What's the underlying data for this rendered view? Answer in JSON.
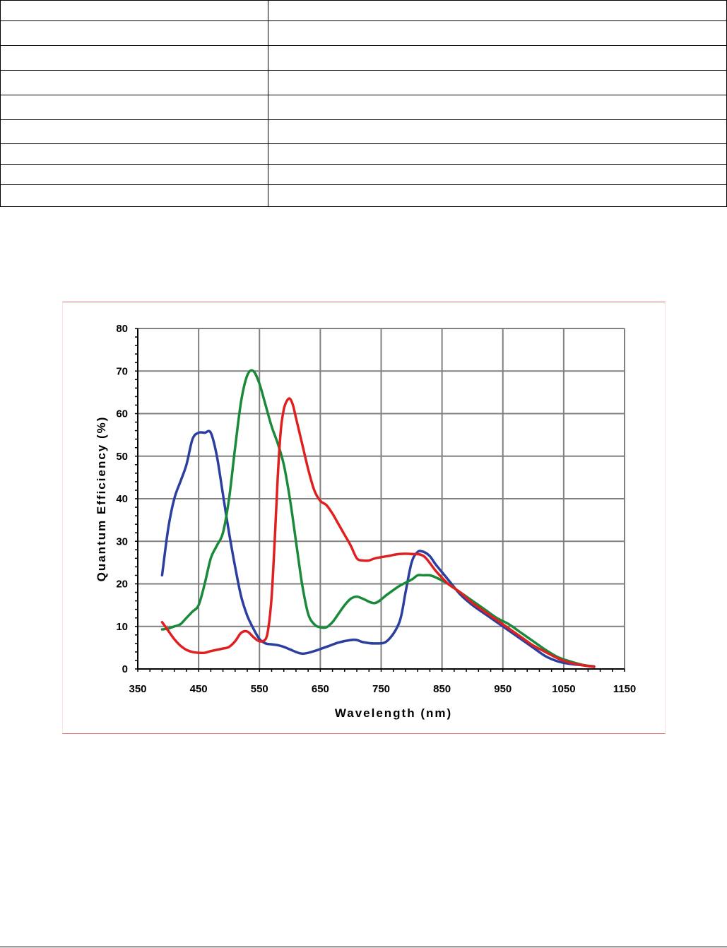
{
  "table": {
    "rows": [
      [
        "",
        ""
      ],
      [
        "",
        ""
      ],
      [
        "",
        ""
      ],
      [
        "",
        ""
      ],
      [
        "",
        ""
      ],
      [
        "",
        ""
      ],
      [
        "",
        ""
      ],
      [
        "",
        ""
      ],
      [
        "",
        ""
      ]
    ]
  },
  "chart_data": {
    "type": "line",
    "xlabel": "Wavelength (nm)",
    "ylabel": "Quantum Efficiency (%)",
    "xlim": [
      350,
      1150
    ],
    "ylim": [
      0,
      80
    ],
    "xticks": [
      350,
      450,
      550,
      650,
      750,
      850,
      950,
      1050,
      1150
    ],
    "yticks": [
      0,
      10,
      20,
      30,
      40,
      50,
      60,
      70,
      80
    ],
    "grid": true,
    "series": [
      {
        "color": "#2b3fa0",
        "x": [
          390,
          400,
          410,
          420,
          430,
          440,
          450,
          460,
          470,
          480,
          490,
          500,
          510,
          520,
          530,
          540,
          550,
          560,
          570,
          580,
          590,
          600,
          620,
          640,
          660,
          680,
          700,
          710,
          720,
          740,
          760,
          780,
          790,
          800,
          810,
          820,
          830,
          840,
          860,
          880,
          900,
          920,
          940,
          960,
          980,
          1000,
          1020,
          1040,
          1060,
          1080,
          1100
        ],
        "y": [
          22,
          33,
          40,
          44,
          48,
          54,
          55.5,
          55.5,
          55.5,
          50,
          41,
          32,
          24,
          17,
          12.5,
          9.5,
          7,
          6,
          5.8,
          5.6,
          5.2,
          4.6,
          3.6,
          4.2,
          5.2,
          6.2,
          6.8,
          6.8,
          6.3,
          6,
          6.6,
          11,
          18,
          25,
          27.5,
          27.5,
          26.5,
          24.5,
          21,
          17.5,
          15,
          13,
          11,
          9,
          7,
          5,
          3,
          1.8,
          1.2,
          0.9,
          0.6
        ]
      },
      {
        "color": "#1a8a3a",
        "x": [
          390,
          400,
          410,
          420,
          430,
          440,
          450,
          460,
          470,
          480,
          490,
          500,
          510,
          520,
          530,
          540,
          550,
          560,
          570,
          580,
          590,
          600,
          610,
          620,
          630,
          640,
          650,
          660,
          670,
          680,
          690,
          700,
          710,
          720,
          740,
          760,
          780,
          800,
          810,
          820,
          830,
          840,
          860,
          880,
          900,
          920,
          940,
          960,
          980,
          1000,
          1020,
          1040,
          1060,
          1080,
          1100
        ],
        "y": [
          9.3,
          9.5,
          10,
          10.5,
          12,
          13.5,
          15,
          20,
          26,
          29,
          32,
          40,
          52,
          63,
          69,
          70,
          67,
          62,
          57,
          53,
          48,
          40,
          30,
          20,
          13,
          10.5,
          9.8,
          9.8,
          11,
          13,
          15,
          16.5,
          17,
          16.5,
          15.5,
          17.5,
          19.5,
          21,
          22,
          22,
          22,
          21.5,
          20,
          18,
          16,
          14,
          12,
          10.5,
          8.5,
          6.5,
          4.5,
          2.8,
          1.8,
          1.0,
          0.5
        ]
      },
      {
        "color": "#e02020",
        "x": [
          390,
          400,
          410,
          420,
          430,
          440,
          450,
          460,
          470,
          480,
          490,
          500,
          510,
          520,
          530,
          540,
          550,
          560,
          565,
          570,
          575,
          580,
          585,
          590,
          595,
          600,
          605,
          610,
          620,
          630,
          640,
          650,
          660,
          670,
          680,
          690,
          700,
          710,
          720,
          730,
          740,
          760,
          780,
          800,
          820,
          840,
          860,
          880,
          900,
          920,
          940,
          960,
          980,
          1000,
          1020,
          1040,
          1060,
          1080,
          1100
        ],
        "y": [
          11,
          9,
          7,
          5.5,
          4.5,
          4,
          3.8,
          3.8,
          4.2,
          4.5,
          4.8,
          5.2,
          6.5,
          8.5,
          8.8,
          7.5,
          6.5,
          7,
          10,
          17,
          30,
          45,
          56,
          61,
          63,
          63.5,
          62,
          59,
          53,
          47,
          42,
          39.5,
          38.5,
          36.5,
          34,
          31.5,
          29,
          26,
          25.5,
          25.5,
          26,
          26.5,
          27,
          27,
          26.5,
          23,
          20,
          18,
          15.5,
          13.5,
          11.5,
          9.5,
          7.5,
          5.5,
          4,
          2.5,
          1.5,
          0.9,
          0.5
        ]
      }
    ]
  }
}
